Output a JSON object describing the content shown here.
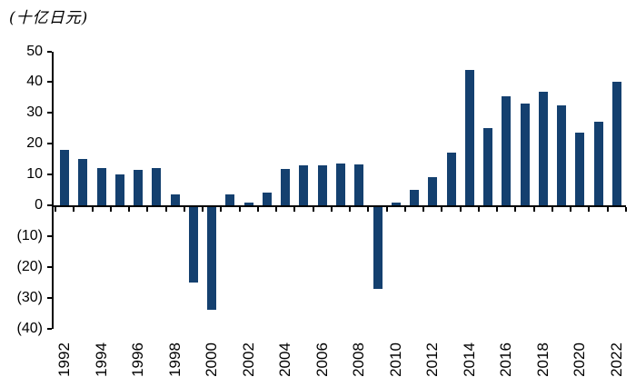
{
  "title": "(十亿日元)",
  "chart_data": {
    "type": "bar",
    "title": "(十亿日元)",
    "unit_label": "(十亿日元)",
    "categories": [
      "1992",
      "1993",
      "1994",
      "1995",
      "1996",
      "1997",
      "1998",
      "1999",
      "2000",
      "2001",
      "2002",
      "2003",
      "2004",
      "2005",
      "2006",
      "2007",
      "2008",
      "2009",
      "2010",
      "2011",
      "2012",
      "2013",
      "2014",
      "2015",
      "2016",
      "2017",
      "2018",
      "2019",
      "2020",
      "2021",
      "2022"
    ],
    "values": [
      18,
      15,
      12,
      10,
      11.5,
      12,
      3.5,
      -25,
      -34,
      3.5,
      1,
      4,
      11.7,
      13,
      12.9,
      13.6,
      13.3,
      -27,
      1,
      5,
      9,
      17,
      44,
      25,
      35.5,
      33,
      37,
      32.5,
      23.5,
      27,
      40
    ],
    "ylim": [
      -40,
      50
    ],
    "ytick_step": 10,
    "ytick_labels": [
      "50",
      "40",
      "30",
      "20",
      "10",
      "0",
      "(10)",
      "(20)",
      "(30)",
      "(40)"
    ],
    "ytick_values": [
      50,
      40,
      30,
      20,
      10,
      0,
      -10,
      -20,
      -30,
      -40
    ],
    "xtick_labels": [
      "1992",
      "1994",
      "1996",
      "1998",
      "2000",
      "2002",
      "2004",
      "2006",
      "2008",
      "2010",
      "2012",
      "2014",
      "2016",
      "2018",
      "2020",
      "2022"
    ],
    "negative_number_format": "parentheses",
    "grid": false,
    "legend": "none",
    "bar_color": "#14406F",
    "axis_color": "#000000"
  }
}
